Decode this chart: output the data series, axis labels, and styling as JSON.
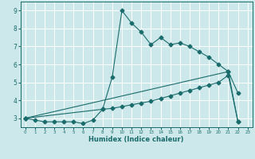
{
  "xlabel": "Humidex (Indice chaleur)",
  "xlim": [
    -0.5,
    23.5
  ],
  "ylim": [
    2.5,
    9.5
  ],
  "yticks": [
    3,
    4,
    5,
    6,
    7,
    8,
    9
  ],
  "xticks": [
    0,
    1,
    2,
    3,
    4,
    5,
    6,
    7,
    8,
    9,
    10,
    11,
    12,
    13,
    14,
    15,
    16,
    17,
    18,
    19,
    20,
    21,
    22,
    23
  ],
  "bg_color": "#cce8ea",
  "line_color": "#1a6b6b",
  "grid_color": "#ffffff",
  "line1_x": [
    0,
    1,
    2,
    3,
    4,
    5,
    6,
    7,
    8,
    9,
    10,
    11,
    12,
    13,
    14,
    15,
    16,
    17,
    18,
    19,
    20,
    21,
    22
  ],
  "line1_y": [
    3.0,
    2.9,
    2.8,
    2.8,
    2.8,
    2.8,
    2.7,
    2.9,
    3.5,
    5.3,
    9.0,
    8.3,
    7.8,
    7.1,
    7.5,
    7.1,
    7.2,
    7.0,
    6.7,
    6.4,
    6.0,
    5.6,
    4.4
  ],
  "line2_x": [
    0,
    8,
    9,
    10,
    11,
    12,
    13,
    14,
    15,
    16,
    17,
    18,
    19,
    20,
    21,
    22
  ],
  "line2_y": [
    3.0,
    3.5,
    3.55,
    3.65,
    3.75,
    3.85,
    3.95,
    4.1,
    4.25,
    4.4,
    4.55,
    4.7,
    4.85,
    5.0,
    5.4,
    2.8
  ],
  "line3_x": [
    0,
    21,
    22
  ],
  "line3_y": [
    3.0,
    5.6,
    2.8
  ],
  "marker": "D",
  "markersize": 2.5
}
